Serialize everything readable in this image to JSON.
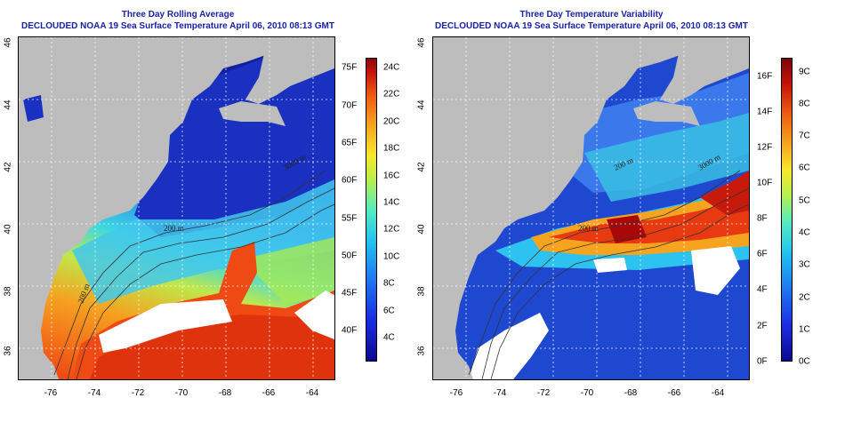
{
  "left": {
    "title": "Three Day Rolling Average",
    "subtitle": "DECLOUDED NOAA 19 Sea Surface Temperature April 06, 2010 08:13 GMT",
    "contour_labels": [
      "200 m",
      "200 m",
      "3000 m"
    ],
    "colorbar": {
      "fahrenheit_labels": [
        "75F",
        "70F",
        "65F",
        "60F",
        "55F",
        "50F",
        "45F",
        "40F"
      ],
      "celsius_labels": [
        "24C",
        "22C",
        "20C",
        "18C",
        "16C",
        "14C",
        "12C",
        "10C",
        "8C",
        "6C",
        "4C"
      ],
      "range_c": [
        2.5,
        25
      ]
    }
  },
  "right": {
    "title": "Three Day Temperature Variability",
    "subtitle": "DECLOUDED NOAA 19 Sea Surface Temperature April 06, 2010 08:13 GMT",
    "contour_labels": [
      "200 m",
      "200 m",
      "3000 m"
    ],
    "colorbar": {
      "fahrenheit_labels": [
        "16F",
        "14F",
        "12F",
        "10F",
        "8F",
        "6F",
        "4F",
        "2F",
        "0F"
      ],
      "celsius_labels": [
        "9C",
        "8C",
        "7C",
        "6C",
        "5C",
        "4C",
        "3C",
        "2C",
        "1C",
        "0C"
      ],
      "range_c": [
        0,
        9.5
      ]
    }
  },
  "axes": {
    "lat_labels": [
      "46",
      "44",
      "42",
      "40",
      "38",
      "36"
    ],
    "lon_labels": [
      "-76",
      "-74",
      "-72",
      "-70",
      "-68",
      "-66",
      "-64"
    ],
    "lon_range": [
      -77.5,
      -63
    ],
    "lat_range": [
      35,
      46
    ]
  },
  "colors": {
    "land": "#bdbdbd",
    "title": "#1a22a8"
  }
}
